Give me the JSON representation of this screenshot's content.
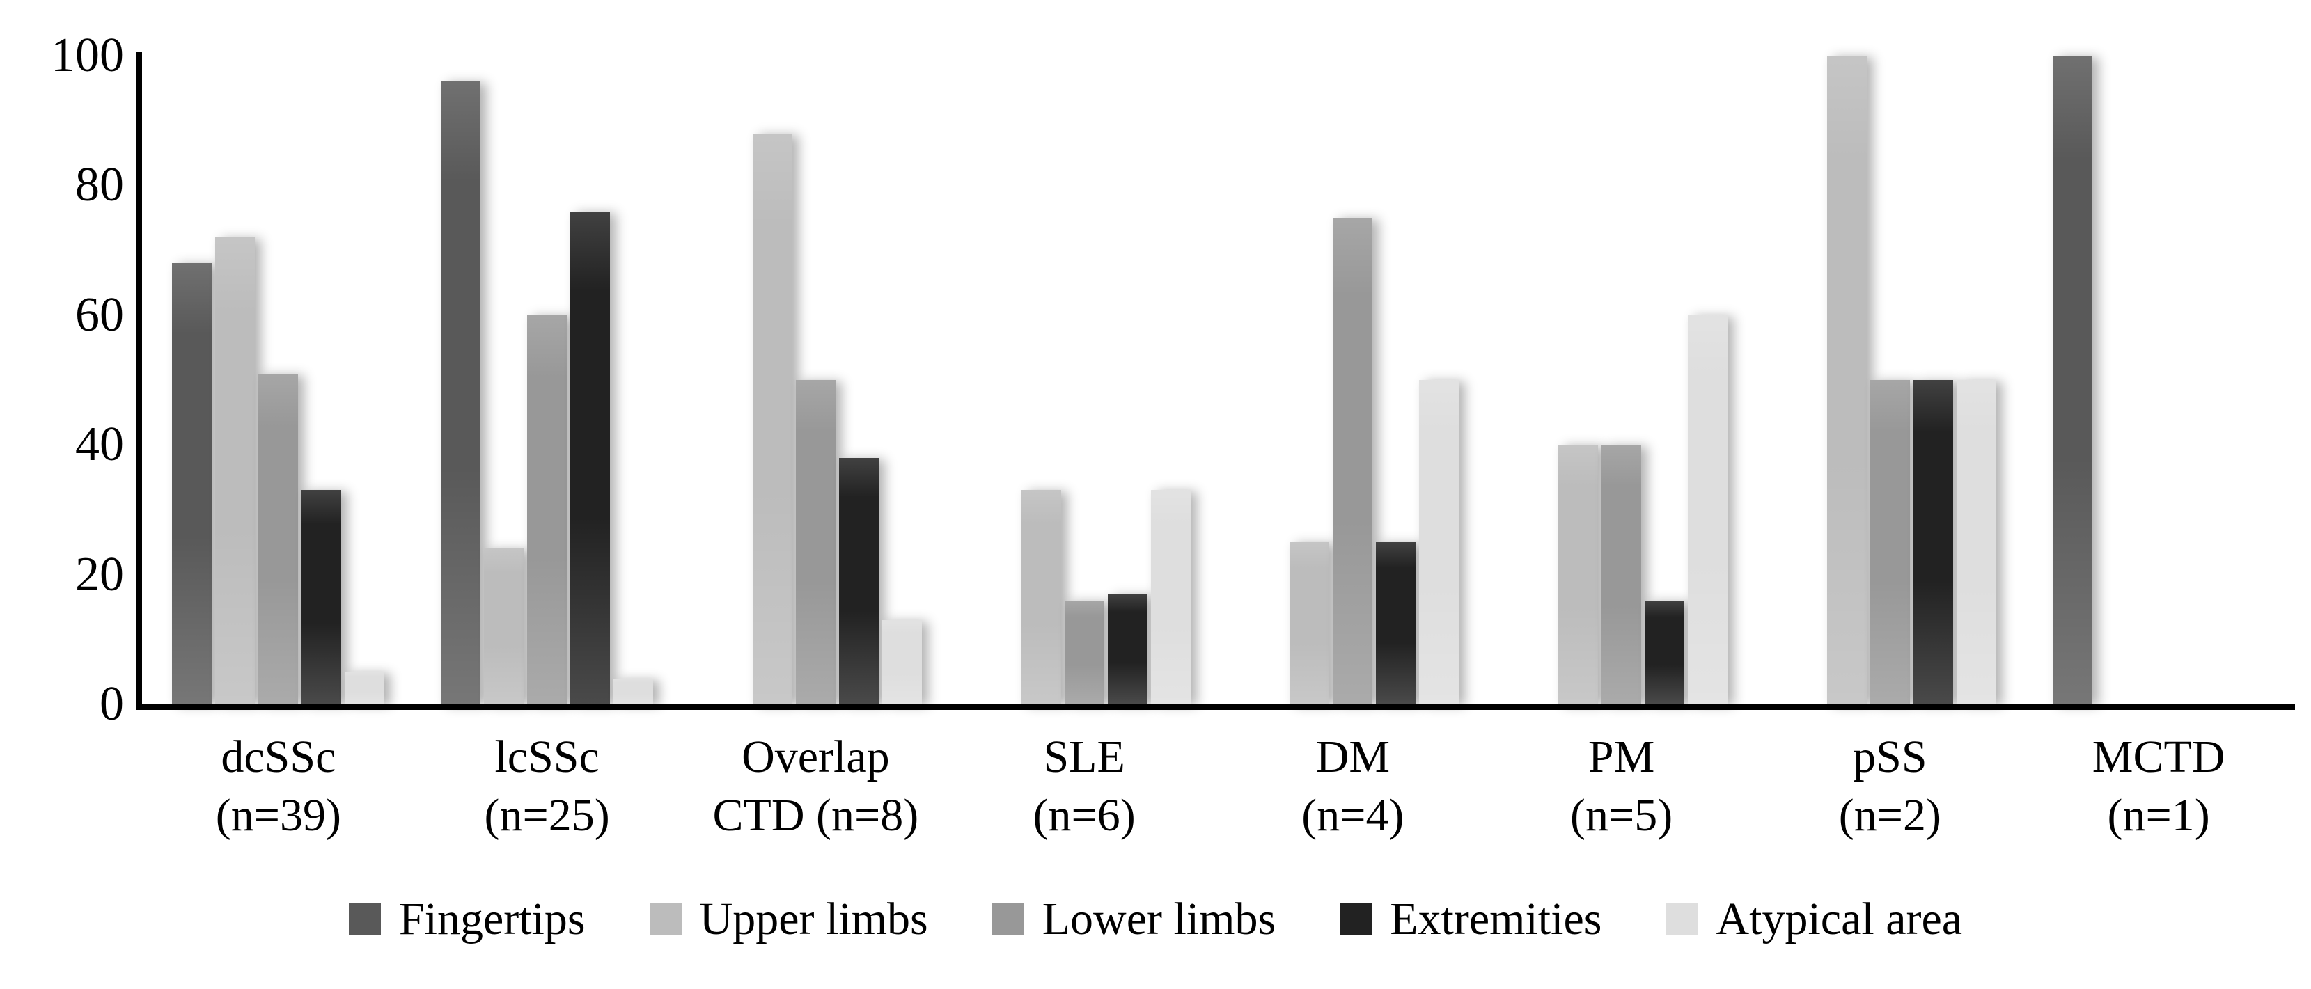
{
  "chart_data": {
    "type": "bar",
    "title": "",
    "xlabel": "",
    "ylabel": "",
    "grid": false,
    "legend_position": "bottom",
    "y_axis": {
      "min": 0,
      "max": 100,
      "ticks": [
        0,
        20,
        40,
        60,
        80,
        100
      ]
    },
    "categories": [
      {
        "label": "dcSSc (n=39)",
        "line1": "dcSSc",
        "line2": "(n=39)"
      },
      {
        "label": "lcSSc (n=25)",
        "line1": "lcSSc",
        "line2": "(n=25)"
      },
      {
        "label": "Overlap CTD (n=8)",
        "line1": "Overlap",
        "line2": "CTD (n=8)"
      },
      {
        "label": "SLE (n=6)",
        "line1": "SLE",
        "line2": "(n=6)"
      },
      {
        "label": "DM (n=4)",
        "line1": "DM",
        "line2": "(n=4)"
      },
      {
        "label": "PM (n=5)",
        "line1": "PM",
        "line2": "(n=5)"
      },
      {
        "label": "pSS (n=2)",
        "line1": "pSS",
        "line2": "(n=2)"
      },
      {
        "label": "MCTD (n=1)",
        "line1": "MCTD",
        "line2": "(n=1)"
      }
    ],
    "series": [
      {
        "name": "Fingertips",
        "color": "#595959",
        "values": [
          68,
          96,
          0,
          0,
          0,
          0,
          0,
          100
        ]
      },
      {
        "name": "Upper limbs",
        "color": "#bcbcbc",
        "values": [
          72,
          24,
          88,
          33,
          25,
          40,
          100,
          0
        ]
      },
      {
        "name": "Lower limbs",
        "color": "#989898",
        "values": [
          51,
          60,
          50,
          16,
          75,
          40,
          50,
          0
        ]
      },
      {
        "name": "Extremities",
        "color": "#222222",
        "values": [
          33,
          76,
          38,
          17,
          25,
          16,
          50,
          0
        ]
      },
      {
        "name": "Atypical area",
        "color": "#dedede",
        "values": [
          5,
          4,
          13,
          33,
          50,
          60,
          50,
          0
        ]
      }
    ]
  }
}
